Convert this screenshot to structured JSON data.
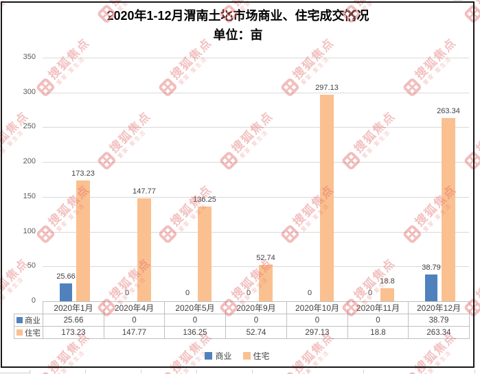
{
  "page": {
    "background_color": "#ffffff",
    "frame_border_color": "#161616",
    "gridline_color": "#d9d9d9",
    "axis_text_color": "#595959",
    "table_border_color": "#bfbfbf",
    "table_text_color": "#404040"
  },
  "title": {
    "line1": "2020年1-12月渭南土地市场商业、住宅成交情况",
    "line2": "单位：亩"
  },
  "watermark": {
    "brand": "搜狐焦点",
    "tagline": "爱家·爱生活",
    "color": "#e06262"
  },
  "chart_data": {
    "type": "bar",
    "title": "2020年1-12月渭南土地市场商业、住宅成交情况",
    "subtitle": "单位：亩",
    "unit": "亩",
    "categories": [
      "2020年1月",
      "2020年4月",
      "2020年5月",
      "2020年9月",
      "2020年10月",
      "2020年11月",
      "2020年12月"
    ],
    "series": [
      {
        "name": "商业",
        "color": "#4F81BD",
        "values": [
          25.66,
          0,
          0,
          0,
          0,
          0,
          38.79
        ],
        "labels": [
          "25.66",
          "0",
          "0",
          "0",
          "0",
          "0",
          "38.79"
        ]
      },
      {
        "name": "住宅",
        "color": "#FAC090",
        "values": [
          173.23,
          147.77,
          136.25,
          52.74,
          297.13,
          18.8,
          263.34
        ],
        "labels": [
          "173.23",
          "147.77",
          "136.25",
          "52.74",
          "297.13",
          "18.8",
          "263.34"
        ]
      }
    ],
    "ylim": [
      0,
      350
    ],
    "yticks": [
      0,
      50,
      100,
      150,
      200,
      250,
      300,
      350
    ],
    "grid": true,
    "legend_position": "bottom",
    "data_table_shown": true
  },
  "legend": {
    "items": [
      {
        "label": "商业",
        "color": "#4F81BD"
      },
      {
        "label": "住宅",
        "color": "#FAC090"
      }
    ]
  }
}
